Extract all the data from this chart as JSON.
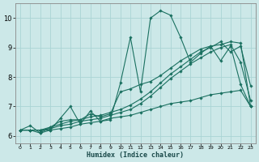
{
  "xlabel": "Humidex (Indice chaleur)",
  "bg_color": "#cce8e8",
  "grid_color": "#aad4d4",
  "line_color": "#1a7060",
  "xlim": [
    -0.5,
    23.5
  ],
  "ylim": [
    5.75,
    10.5
  ],
  "xticks": [
    0,
    1,
    2,
    3,
    4,
    5,
    6,
    7,
    8,
    9,
    10,
    11,
    12,
    13,
    14,
    15,
    16,
    17,
    18,
    19,
    20,
    21,
    22,
    23
  ],
  "yticks": [
    6,
    7,
    8,
    9,
    10
  ],
  "series": [
    [
      6.2,
      6.35,
      6.1,
      6.2,
      6.6,
      7.0,
      6.4,
      6.85,
      6.5,
      6.55,
      7.8,
      9.35,
      7.5,
      10.0,
      10.25,
      10.1,
      9.35,
      8.5,
      8.8,
      9.05,
      8.55,
      9.05,
      7.75,
      7.0
    ],
    [
      6.2,
      6.2,
      6.1,
      6.3,
      6.5,
      6.55,
      6.55,
      6.75,
      6.65,
      6.75,
      7.5,
      7.6,
      7.75,
      7.85,
      8.05,
      8.3,
      8.55,
      8.75,
      8.95,
      9.05,
      9.1,
      9.2,
      9.15,
      7.0
    ],
    [
      6.2,
      6.2,
      6.2,
      6.25,
      6.35,
      6.4,
      6.5,
      6.55,
      6.6,
      6.7,
      6.8,
      6.9,
      7.1,
      7.35,
      7.65,
      7.95,
      8.2,
      8.45,
      8.65,
      8.85,
      9.0,
      9.1,
      8.5,
      7.2
    ],
    [
      6.2,
      6.2,
      6.2,
      6.3,
      6.4,
      6.5,
      6.55,
      6.65,
      6.7,
      6.8,
      6.9,
      7.05,
      7.25,
      7.5,
      7.8,
      8.1,
      8.35,
      8.6,
      8.85,
      9.0,
      9.2,
      8.85,
      9.05,
      7.7
    ],
    [
      6.2,
      6.2,
      6.2,
      6.2,
      6.25,
      6.3,
      6.4,
      6.45,
      6.5,
      6.6,
      6.65,
      6.7,
      6.8,
      6.9,
      7.0,
      7.1,
      7.15,
      7.2,
      7.3,
      7.4,
      7.45,
      7.5,
      7.55,
      7.0
    ]
  ]
}
